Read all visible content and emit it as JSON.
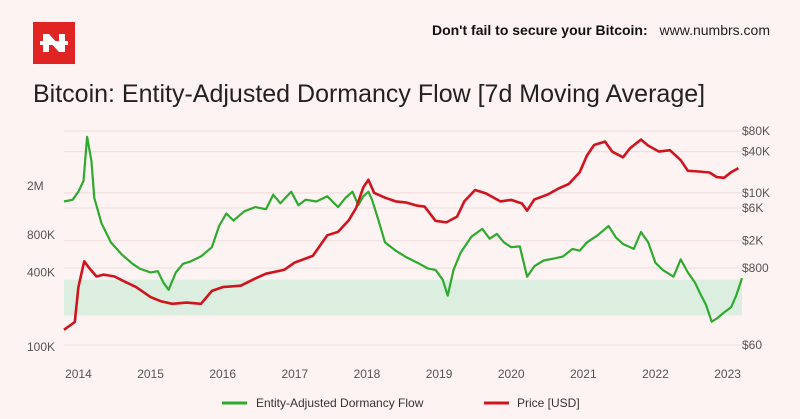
{
  "header": {
    "promo_text": "Don't fail to secure your Bitcoin:",
    "promo_url": "www.numbrs.com",
    "brand_color": "#e02424"
  },
  "chart_data": {
    "type": "line",
    "title": "Bitcoin: Entity-Adjusted Dormancy Flow [7d Moving Average]",
    "x_ticks": [
      "2014",
      "2015",
      "2016",
      "2017",
      "2018",
      "2019",
      "2020",
      "2021",
      "2022",
      "2023"
    ],
    "x_range": [
      2013.8,
      2023.2
    ],
    "y_left": {
      "scale": "log",
      "ticks": [
        {
          "value": 100000,
          "label": "100K"
        },
        {
          "value": 400000,
          "label": "400K"
        },
        {
          "value": 800000,
          "label": "800K"
        },
        {
          "value": 2000000,
          "label": "2M"
        }
      ],
      "range": [
        90000,
        6000000
      ]
    },
    "y_right": {
      "scale": "log",
      "ticks": [
        {
          "value": 60,
          "label": "$60"
        },
        {
          "value": 800,
          "label": "$800"
        },
        {
          "value": 2000,
          "label": "$2K"
        },
        {
          "value": 6000,
          "label": "$6K"
        },
        {
          "value": 10000,
          "label": "$10K"
        },
        {
          "value": 40000,
          "label": "$40K"
        },
        {
          "value": 80000,
          "label": "$80K"
        }
      ]
    },
    "band": {
      "from": 180000,
      "to": 350000,
      "color": "#dbeee0"
    },
    "series": [
      {
        "name": "Entity-Adjusted Dormancy Flow",
        "color": "#2eaa2e",
        "axis": "left",
        "points": [
          [
            2013.8,
            1500000
          ],
          [
            2013.92,
            1550000
          ],
          [
            2014.0,
            1800000
          ],
          [
            2014.07,
            2200000
          ],
          [
            2014.12,
            5000000
          ],
          [
            2014.18,
            3200000
          ],
          [
            2014.22,
            1600000
          ],
          [
            2014.32,
            1000000
          ],
          [
            2014.45,
            700000
          ],
          [
            2014.6,
            560000
          ],
          [
            2014.75,
            470000
          ],
          [
            2014.85,
            430000
          ],
          [
            2015.0,
            400000
          ],
          [
            2015.1,
            410000
          ],
          [
            2015.18,
            330000
          ],
          [
            2015.25,
            290000
          ],
          [
            2015.35,
            400000
          ],
          [
            2015.45,
            470000
          ],
          [
            2015.55,
            490000
          ],
          [
            2015.7,
            540000
          ],
          [
            2015.85,
            640000
          ],
          [
            2015.95,
            950000
          ],
          [
            2016.05,
            1200000
          ],
          [
            2016.15,
            1050000
          ],
          [
            2016.3,
            1250000
          ],
          [
            2016.45,
            1350000
          ],
          [
            2016.6,
            1300000
          ],
          [
            2016.7,
            1700000
          ],
          [
            2016.8,
            1450000
          ],
          [
            2016.95,
            1800000
          ],
          [
            2017.05,
            1400000
          ],
          [
            2017.15,
            1550000
          ],
          [
            2017.3,
            1500000
          ],
          [
            2017.45,
            1650000
          ],
          [
            2017.6,
            1350000
          ],
          [
            2017.7,
            1600000
          ],
          [
            2017.8,
            1800000
          ],
          [
            2017.88,
            1400000
          ],
          [
            2017.95,
            1650000
          ],
          [
            2018.02,
            1800000
          ],
          [
            2018.07,
            1550000
          ],
          [
            2018.15,
            1100000
          ],
          [
            2018.25,
            700000
          ],
          [
            2018.4,
            600000
          ],
          [
            2018.55,
            530000
          ],
          [
            2018.7,
            480000
          ],
          [
            2018.85,
            430000
          ],
          [
            2018.95,
            420000
          ],
          [
            2019.05,
            350000
          ],
          [
            2019.12,
            260000
          ],
          [
            2019.2,
            420000
          ],
          [
            2019.3,
            580000
          ],
          [
            2019.45,
            780000
          ],
          [
            2019.6,
            900000
          ],
          [
            2019.7,
            750000
          ],
          [
            2019.8,
            820000
          ],
          [
            2019.9,
            700000
          ],
          [
            2020.0,
            640000
          ],
          [
            2020.12,
            650000
          ],
          [
            2020.22,
            370000
          ],
          [
            2020.32,
            450000
          ],
          [
            2020.45,
            500000
          ],
          [
            2020.6,
            520000
          ],
          [
            2020.72,
            540000
          ],
          [
            2020.85,
            620000
          ],
          [
            2020.95,
            600000
          ],
          [
            2021.05,
            700000
          ],
          [
            2021.2,
            800000
          ],
          [
            2021.35,
            950000
          ],
          [
            2021.45,
            770000
          ],
          [
            2021.55,
            680000
          ],
          [
            2021.7,
            620000
          ],
          [
            2021.8,
            850000
          ],
          [
            2021.9,
            700000
          ],
          [
            2022.0,
            480000
          ],
          [
            2022.1,
            420000
          ],
          [
            2022.25,
            370000
          ],
          [
            2022.35,
            510000
          ],
          [
            2022.45,
            400000
          ],
          [
            2022.55,
            330000
          ],
          [
            2022.62,
            270000
          ],
          [
            2022.7,
            220000
          ],
          [
            2022.78,
            160000
          ],
          [
            2022.85,
            170000
          ],
          [
            2022.95,
            190000
          ],
          [
            2023.05,
            210000
          ],
          [
            2023.12,
            260000
          ],
          [
            2023.2,
            360000
          ]
        ]
      },
      {
        "name": "Price [USD]",
        "color": "#d0141e",
        "axis": "right",
        "points": [
          [
            2013.8,
            100
          ],
          [
            2013.95,
            130
          ],
          [
            2014.0,
            420
          ],
          [
            2014.08,
            1000
          ],
          [
            2014.15,
            800
          ],
          [
            2014.25,
            600
          ],
          [
            2014.35,
            640
          ],
          [
            2014.5,
            600
          ],
          [
            2014.65,
            500
          ],
          [
            2014.8,
            420
          ],
          [
            2015.0,
            300
          ],
          [
            2015.15,
            260
          ],
          [
            2015.3,
            240
          ],
          [
            2015.5,
            250
          ],
          [
            2015.7,
            240
          ],
          [
            2015.85,
            370
          ],
          [
            2016.0,
            420
          ],
          [
            2016.25,
            440
          ],
          [
            2016.45,
            560
          ],
          [
            2016.6,
            660
          ],
          [
            2016.85,
            750
          ],
          [
            2017.0,
            960
          ],
          [
            2017.25,
            1200
          ],
          [
            2017.45,
            2400
          ],
          [
            2017.6,
            2700
          ],
          [
            2017.75,
            4000
          ],
          [
            2017.85,
            6000
          ],
          [
            2017.95,
            12000
          ],
          [
            2018.02,
            15500
          ],
          [
            2018.1,
            10000
          ],
          [
            2018.25,
            8500
          ],
          [
            2018.4,
            7500
          ],
          [
            2018.55,
            7200
          ],
          [
            2018.7,
            6500
          ],
          [
            2018.8,
            6300
          ],
          [
            2018.95,
            3900
          ],
          [
            2019.1,
            3700
          ],
          [
            2019.25,
            4500
          ],
          [
            2019.35,
            7500
          ],
          [
            2019.5,
            11000
          ],
          [
            2019.65,
            9800
          ],
          [
            2019.85,
            7500
          ],
          [
            2020.0,
            7900
          ],
          [
            2020.15,
            7000
          ],
          [
            2020.22,
            5500
          ],
          [
            2020.32,
            8000
          ],
          [
            2020.5,
            9400
          ],
          [
            2020.65,
            11500
          ],
          [
            2020.8,
            13500
          ],
          [
            2020.95,
            20000
          ],
          [
            2021.05,
            35000
          ],
          [
            2021.15,
            50000
          ],
          [
            2021.3,
            56000
          ],
          [
            2021.4,
            40000
          ],
          [
            2021.55,
            33000
          ],
          [
            2021.65,
            45000
          ],
          [
            2021.8,
            60000
          ],
          [
            2021.9,
            49000
          ],
          [
            2022.05,
            40000
          ],
          [
            2022.2,
            42000
          ],
          [
            2022.35,
            30000
          ],
          [
            2022.45,
            21000
          ],
          [
            2022.6,
            20500
          ],
          [
            2022.75,
            19800
          ],
          [
            2022.85,
            17000
          ],
          [
            2022.95,
            16600
          ],
          [
            2023.05,
            20000
          ],
          [
            2023.15,
            23000
          ]
        ]
      }
    ],
    "legend_position": "bottom-center",
    "grid": true
  }
}
